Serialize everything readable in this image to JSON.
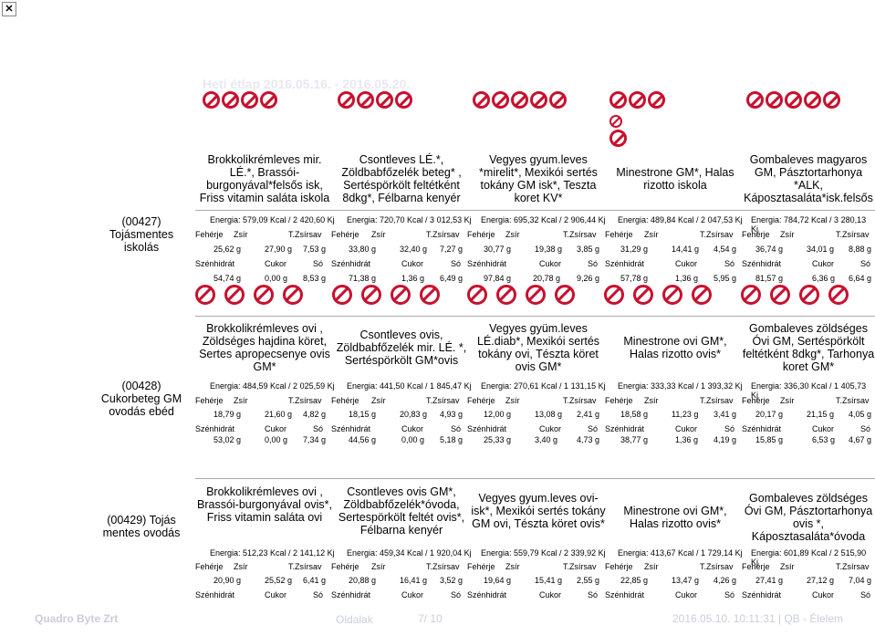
{
  "window": {
    "close_icon": "close-icon"
  },
  "title": "Heti étlap 2016.05.16. - 2016.05.20.",
  "groups": [
    {
      "label": "(00427) Tojásmentes iskolás",
      "days": [
        {
          "meal": "Brokkolikrémleves mir. LÉ.*, Brassói-burgonyával*felsős isk, Friss vitamin saláta iskola",
          "energy": "Energia: 579,09 Kcal / 2 420,60 Kj",
          "feherje": "25,62 g",
          "zsir": "27,90 g",
          "tzsirsav": "7,53 g",
          "szenhidrat": "54,74 g",
          "cukor": "0,00 g",
          "so": "8,53 g"
        },
        {
          "meal": "Csontleves LÉ.*, Zöldbabfőzelék beteg* , Sertéspörkölt feltétként 8dkg*, Félbarna kenyér",
          "energy": "Energia: 720,70 Kcal / 3 012,53 Kj",
          "feherje": "33,80 g",
          "zsir": "32,40 g",
          "tzsirsav": "7,27 g",
          "szenhidrat": "71,38 g",
          "cukor": "1,36 g",
          "so": "6,49 g"
        },
        {
          "meal": "Vegyes gyum.leves *mirelit*, Mexikói sertés tokány GM isk*, Teszta koret KV*",
          "energy": "Energia: 695,32 Kcal / 2 906,44 Kj",
          "feherje": "30,77 g",
          "zsir": "19,38 g",
          "tzsirsav": "3,85 g",
          "szenhidrat": "97,84 g",
          "cukor": "20,78 g",
          "so": "9,26 g"
        },
        {
          "meal": "Minestrone GM*, Halas rizotto iskola",
          "energy": "Energia: 489,84 Kcal / 2 047,53 Kj",
          "feherje": "31,29 g",
          "zsir": "14,41 g",
          "tzsirsav": "4,54 g",
          "szenhidrat": "57,78 g",
          "cukor": "1,36 g",
          "so": "5,95 g"
        },
        {
          "meal": "Gombaleves magyaros GM, Pásztortarhonya *ALK, Káposztasaláta*isk.felsős",
          "energy": "Energia: 784,72 Kcal / 3 280,13 Kj",
          "feherje": "36,74 g",
          "zsir": "34,01 g",
          "tzsirsav": "8,88 g",
          "szenhidrat": "81,57 g",
          "cukor": "6,36 g",
          "so": "6,64 g"
        }
      ]
    },
    {
      "label": "(00428) Cukorbeteg GM ovodás ebéd",
      "days": [
        {
          "meal": "Brokkolikrémleves ovi , Zöldséges hajdina köret, Sertes apropecsenye ovis GM*",
          "energy": "Energia: 484,59 Kcal / 2 025,59 Kj",
          "feherje": "18,79 g",
          "zsir": "21,60 g",
          "tzsirsav": "4,82 g",
          "szenhidrat": "53,02 g",
          "cukor": "0,00 g",
          "so": "7,34 g"
        },
        {
          "meal": "Csontleves ovis, Zöldbabfőzelék mir. LÉ. *, Sertéspörkölt GM*ovis",
          "energy": "Energia: 441,50 Kcal / 1 845,47 Kj",
          "feherje": "18,15 g",
          "zsir": "20,83 g",
          "tzsirsav": "4,93 g",
          "szenhidrat": "44,56 g",
          "cukor": "0,00 g",
          "so": "5,18 g"
        },
        {
          "meal": "Vegyes gyüm.leves LÉ.diab*, Mexikói sertés tokány ovi, Tészta köret ovis GM*",
          "energy": "Energia: 270,61 Kcal / 1 131,15 Kj",
          "feherje": "12,00 g",
          "zsir": "13,08 g",
          "tzsirsav": "2,41 g",
          "szenhidrat": "25,33 g",
          "cukor": "3,40 g",
          "so": "4,73 g"
        },
        {
          "meal": "Minestrone ovi GM*, Halas rizotto ovis*",
          "energy": "Energia: 333,33 Kcal / 1 393,32 Kj",
          "feherje": "18,58 g",
          "zsir": "11,23 g",
          "tzsirsav": "3,41 g",
          "szenhidrat": "38,77 g",
          "cukor": "1,36 g",
          "so": "4,19 g"
        },
        {
          "meal": "Gombaleves zöldséges Óvi GM, Sertéspörkölt feltétként 8dkg*, Tarhonya koret GM*",
          "energy": "Energia: 336,30 Kcal / 1 405,73 Kj",
          "feherje": "20,17 g",
          "zsir": "21,15 g",
          "tzsirsav": "4,05 g",
          "szenhidrat": "15,85 g",
          "cukor": "6,53 g",
          "so": "4,67 g"
        }
      ]
    },
    {
      "label": "(00429) Tojás mentes ovodás",
      "days": [
        {
          "meal": "Brokkolikrémleves ovi , Brassói-burgonyával ovis*, Friss vitamin saláta ovi",
          "energy": "Energia: 512,23 Kcal / 2 141,12 Kj",
          "feherje": "20,90 g",
          "zsir": "25,52 g",
          "tzsirsav": "6,41 g"
        },
        {
          "meal": "Csontleves ovis GM*, Zöldbabfőzelék*óvoda, Sertespörkölt feltét ovis*, Félbarna kenyér",
          "energy": "Energia: 459,34 Kcal / 1 920,04 Kj",
          "feherje": "20,88 g",
          "zsir": "16,41 g",
          "tzsirsav": "3,52 g"
        },
        {
          "meal": "Vegyes gyum.leves ovi-isk*, Mexikói sertés tokány GM ovi, Tészta köret ovis*",
          "energy": "Energia: 559,79 Kcal / 2 339,92 Kj",
          "feherje": "19,64 g",
          "zsir": "15,41 g",
          "tzsirsav": "2,55 g"
        },
        {
          "meal": "Minestrone ovi GM*, Halas rizotto ovis*",
          "energy": "Energia: 413,67 Kcal / 1 729,14 Kj",
          "feherje": "22,85 g",
          "zsir": "13,47 g",
          "tzsirsav": "4,26 g"
        },
        {
          "meal": "Gombaleves zöldséges Óvi GM, Pásztortarhonya ovis *, Káposztasaláta*óvoda",
          "energy": "Energia: 601,89 Kcal / 2 515,90 Kj",
          "feherje": "27,41 g",
          "zsir": "27,12 g",
          "tzsirsav": "7,04 g"
        }
      ]
    }
  ],
  "headers": {
    "feherje": "Fehérje",
    "zsir": "Zsír",
    "tzsirsav": "T.Zsírsav",
    "szenhidrat": "Szénhidrát",
    "cukor": "Cukor",
    "so": "Só"
  },
  "footer": {
    "left": "Quadro Byte Zrt",
    "mid": "Oldalak",
    "page": "7/ 10",
    "right": "2016.05.10. 10:11:31 | QB - Élelem"
  },
  "colors": {
    "allergen": "#c8102e",
    "footer": "#ccccdd"
  }
}
